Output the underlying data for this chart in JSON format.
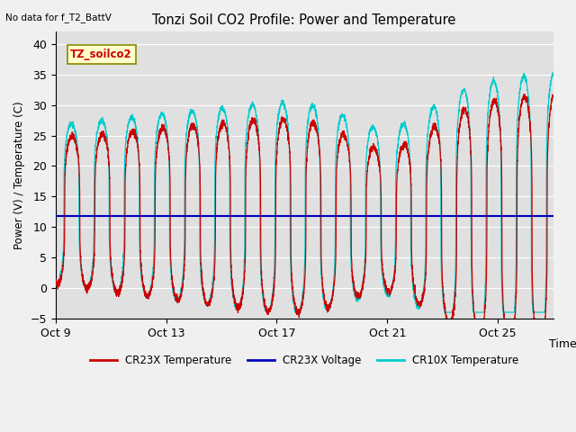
{
  "title": "Tonzi Soil CO2 Profile: Power and Temperature",
  "no_data_label": "No data for f_T2_BattV",
  "ylabel": "Power (V) / Temperature (C)",
  "xlabel": "Time",
  "ylim": [
    -5,
    42
  ],
  "yticks": [
    -5,
    0,
    5,
    10,
    15,
    20,
    25,
    30,
    35,
    40
  ],
  "xtick_labels": [
    "Oct 9",
    "Oct 13",
    "Oct 17",
    "Oct 21",
    "Oct 25"
  ],
  "xtick_positions": [
    0,
    4,
    8,
    12,
    16
  ],
  "voltage_value": 11.8,
  "plot_bg_color": "#e0e0e0",
  "fig_bg_color": "#f0f0f0",
  "legend_label_cr23x_temp": "CR23X Temperature",
  "legend_label_cr23x_volt": "CR23X Voltage",
  "legend_label_cr10x_temp": "CR10X Temperature",
  "legend_box_label": "TZ_soilco2",
  "cr23x_color": "#cc0000",
  "cr10x_color": "#00cccc",
  "voltage_color": "#0000bb",
  "n_days": 18,
  "xlim": [
    0,
    18
  ]
}
